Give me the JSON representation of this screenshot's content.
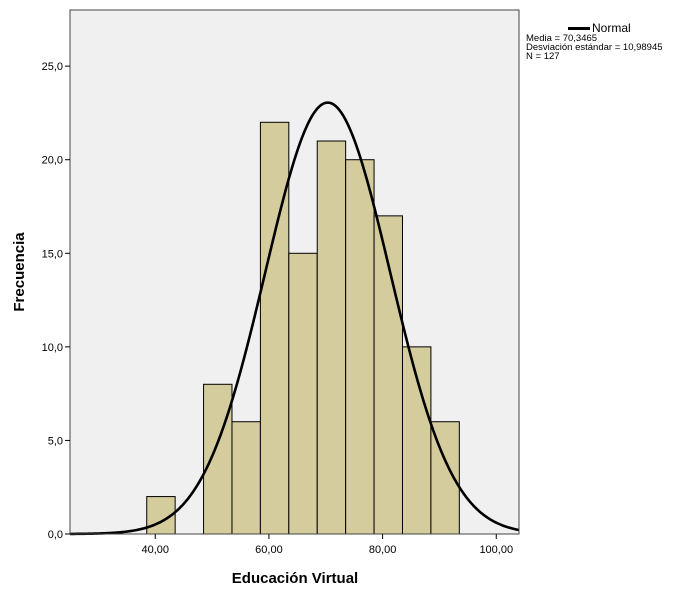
{
  "chart_data": {
    "type": "bar",
    "xlabel": "Educación Virtual",
    "ylabel": "Frecuencia",
    "xlim": [
      25,
      104
    ],
    "ylim": [
      0,
      28
    ],
    "x_ticks": [
      40,
      60,
      80,
      100
    ],
    "x_tick_labels": [
      "40,00",
      "60,00",
      "80,00",
      "100,00"
    ],
    "y_ticks": [
      0,
      5,
      10,
      15,
      20,
      25
    ],
    "y_tick_labels": [
      "0,0",
      "5,0",
      "10,0",
      "15,0",
      "20,0",
      "25,0"
    ],
    "bin_width": 5,
    "bins": [
      {
        "x0": 38.5,
        "x1": 43.5,
        "count": 2
      },
      {
        "x0": 48.5,
        "x1": 53.5,
        "count": 8
      },
      {
        "x0": 53.5,
        "x1": 58.5,
        "count": 6
      },
      {
        "x0": 58.5,
        "x1": 63.5,
        "count": 22
      },
      {
        "x0": 63.5,
        "x1": 68.5,
        "count": 15
      },
      {
        "x0": 68.5,
        "x1": 73.5,
        "count": 21
      },
      {
        "x0": 73.5,
        "x1": 78.5,
        "count": 20
      },
      {
        "x0": 78.5,
        "x1": 83.5,
        "count": 17
      },
      {
        "x0": 83.5,
        "x1": 88.5,
        "count": 10
      },
      {
        "x0": 88.5,
        "x1": 93.5,
        "count": 6
      }
    ],
    "normal_curve": {
      "name": "Normal",
      "mean": 70.3465,
      "sd": 10.98945,
      "n": 127
    },
    "legend": {
      "label": "Normal",
      "stats": [
        {
          "label": "Media",
          "value": "70,3465"
        },
        {
          "label": "Desviación estándar",
          "value": "10,98945"
        },
        {
          "label": "N",
          "value": "127"
        }
      ],
      "position": "top-right"
    },
    "grid": false,
    "colors": {
      "bar_fill": "#d4cc9c",
      "bar_stroke": "#000000",
      "plot_bg": "#f0f0f0",
      "curve": "#000000"
    }
  }
}
